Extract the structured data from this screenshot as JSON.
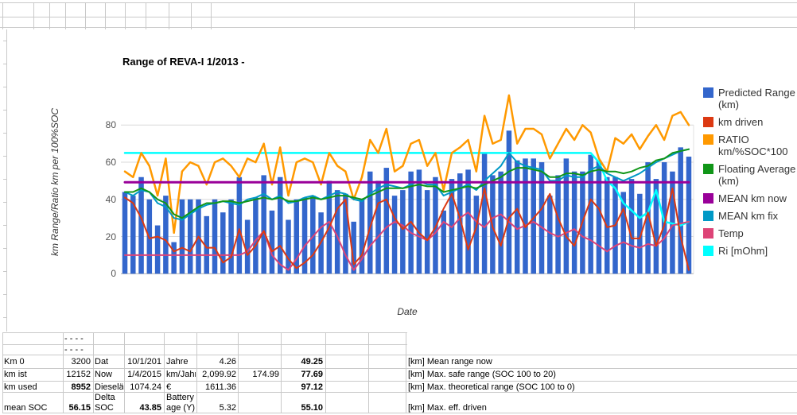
{
  "chart": {
    "title": "Range of REVA-I 1/2013 -",
    "y_axis_label": "km Range/Ratio km per 100%SOC",
    "x_axis_label": "Date",
    "legend": [
      {
        "label": "Predicted Range (km)",
        "color": "#3366CC"
      },
      {
        "label": "km driven",
        "color": "#DC3912"
      },
      {
        "label": "RATIO km/%SOC*100",
        "color": "#FF9900"
      },
      {
        "label": "Floating Average (km)",
        "color": "#109618"
      },
      {
        "label": "MEAN km now",
        "color": "#990099"
      },
      {
        "label": "MEAN km fix",
        "color": "#0099C6"
      },
      {
        "label": "Temp",
        "color": "#DD4477"
      },
      {
        "label": "Ri [mOhm]",
        "color": "#00FFFF"
      }
    ]
  },
  "chart_data": {
    "type": "combo (bar + line)",
    "title": "Range of REVA-I 1/2013 -",
    "xlabel": "Date",
    "ylabel": "km Range/Ratio km per 100%SOC",
    "x_tick_labels": "none shown",
    "n_points": 70,
    "ylim": [
      0,
      100
    ],
    "yticks": [
      0,
      20,
      40,
      60,
      80
    ],
    "grid": true,
    "legend_position": "right",
    "series": [
      {
        "name": "Predicted Range (km)",
        "type": "bar",
        "color": "#3366CC",
        "values": [
          44,
          42,
          52,
          40,
          26,
          42,
          17,
          40,
          40,
          40,
          31,
          40,
          33,
          40,
          52,
          29,
          41,
          53,
          34,
          52,
          29,
          40,
          41,
          42,
          33,
          50,
          45,
          43,
          28,
          40,
          55,
          50,
          57,
          42,
          45,
          55,
          56,
          45,
          52,
          34,
          51,
          54,
          56,
          42,
          65,
          53,
          55,
          77,
          61,
          62,
          62,
          60,
          42,
          53,
          62,
          55,
          55,
          64,
          61,
          52,
          52,
          44,
          51,
          43,
          60,
          51,
          60,
          55,
          68,
          63
        ]
      },
      {
        "name": "km driven",
        "type": "line",
        "color": "#DC3912",
        "values": [
          41,
          38,
          30,
          19,
          20,
          18,
          12,
          14,
          12,
          20,
          14,
          14,
          6,
          9,
          24,
          10,
          15,
          23,
          12,
          15,
          8,
          3,
          6,
          10,
          17,
          25,
          35,
          40,
          5,
          10,
          25,
          38,
          40,
          30,
          24,
          28,
          22,
          18,
          25,
          35,
          43,
          30,
          13,
          25,
          46,
          25,
          15,
          30,
          35,
          25,
          30,
          35,
          43,
          30,
          20,
          15,
          28,
          40,
          35,
          25,
          26,
          35,
          19,
          19,
          33,
          15,
          26,
          46,
          20,
          2
        ]
      },
      {
        "name": "RATIO km/%SOC*100",
        "type": "line",
        "color": "#FF9900",
        "values": [
          55,
          52,
          65,
          58,
          42,
          62,
          22,
          55,
          60,
          58,
          48,
          60,
          62,
          58,
          52,
          62,
          60,
          70,
          48,
          68,
          42,
          60,
          62,
          60,
          48,
          65,
          58,
          55,
          40,
          52,
          72,
          65,
          78,
          55,
          58,
          70,
          72,
          58,
          65,
          45,
          65,
          68,
          72,
          55,
          85,
          70,
          72,
          96,
          70,
          78,
          78,
          75,
          62,
          70,
          78,
          72,
          80,
          76,
          62,
          55,
          73,
          70,
          75,
          67,
          74,
          80,
          72,
          85,
          87,
          80
        ]
      },
      {
        "name": "Floating Average (km)",
        "type": "line",
        "color": "#109618",
        "values": [
          44,
          44,
          46,
          44,
          40,
          38,
          32,
          30,
          33,
          36,
          38,
          38,
          39,
          39,
          38,
          39,
          40,
          41,
          40,
          41,
          39,
          39,
          40,
          41,
          40,
          41,
          42,
          42,
          41,
          40,
          42,
          44,
          46,
          46,
          46,
          47,
          48,
          47,
          47,
          44,
          45,
          46,
          47,
          46,
          48,
          50,
          52,
          55,
          57,
          57,
          56,
          55,
          52,
          52,
          54,
          54,
          53,
          55,
          56,
          55,
          55,
          54,
          55,
          57,
          58,
          61,
          62,
          65,
          66,
          67
        ]
      },
      {
        "name": "MEAN km now",
        "type": "line",
        "color": "#990099",
        "constant": 49.25
      },
      {
        "name": "MEAN km fix",
        "type": "line",
        "color": "#0099C6",
        "values": [
          44,
          42,
          45,
          44,
          38,
          36,
          30,
          29,
          32,
          35,
          37,
          38,
          39,
          38,
          37,
          40,
          41,
          43,
          40,
          42,
          38,
          39,
          41,
          42,
          40,
          42,
          44,
          43,
          40,
          39,
          43,
          46,
          48,
          47,
          46,
          48,
          50,
          48,
          48,
          42,
          44,
          46,
          48,
          45,
          50,
          54,
          58,
          65,
          60,
          58,
          57,
          56,
          50,
          50,
          53,
          52,
          52,
          56,
          58,
          54,
          52,
          50,
          52,
          54,
          57,
          60,
          62,
          64,
          66,
          67
        ]
      },
      {
        "name": "Temp",
        "type": "line",
        "color": "#DD4477",
        "values": [
          10,
          10,
          10,
          10,
          10,
          10,
          10,
          10,
          10,
          10,
          10,
          10,
          10,
          10,
          10,
          12,
          18,
          23,
          10,
          5,
          2,
          8,
          15,
          20,
          25,
          28,
          20,
          10,
          2,
          8,
          15,
          20,
          25,
          28,
          26,
          22,
          20,
          18,
          22,
          28,
          25,
          30,
          33,
          28,
          25,
          30,
          32,
          28,
          24,
          26,
          28,
          25,
          22,
          20,
          22,
          24,
          20,
          18,
          15,
          12,
          15,
          17,
          15,
          14,
          16,
          15,
          19,
          26,
          27,
          28
        ]
      },
      {
        "name": "Ri [mOhm]",
        "type": "line",
        "color": "#00FFFF",
        "values": [
          65,
          65,
          65,
          65,
          65,
          65,
          65,
          65,
          65,
          65,
          65,
          65,
          65,
          65,
          65,
          65,
          65,
          65,
          65,
          65,
          65,
          65,
          65,
          65,
          65,
          65,
          65,
          65,
          65,
          65,
          65,
          65,
          65,
          65,
          65,
          65,
          65,
          65,
          65,
          65,
          65,
          65,
          65,
          65,
          65,
          65,
          65,
          65,
          65,
          65,
          65,
          65,
          65,
          65,
          65,
          65,
          65,
          65,
          60,
          50,
          46,
          38,
          34,
          30,
          33,
          45,
          28,
          27,
          26,
          28
        ]
      }
    ]
  },
  "table": {
    "dash_rows": [
      "- - - -",
      "- - - -"
    ],
    "rows": [
      {
        "cells": [
          "Km 0",
          "3200",
          "Dat",
          "10/1/201",
          "Jahre",
          "4.26",
          "",
          "49.25",
          "[km] Mean range now"
        ],
        "bold": [
          7
        ]
      },
      {
        "cells": [
          "km ist",
          "12152",
          "Now",
          "1/4/2015",
          "km/Jahr",
          "2,099.92",
          "174.99",
          "77.69",
          "[km] Max. safe range (SOC 100 to 20)"
        ],
        "bold": [
          7
        ]
      },
      {
        "cells": [
          "km used",
          "8952",
          "Dieselä",
          "1074.24",
          "€",
          "1611.36",
          "",
          "97.12",
          "[km] Max. theoretical range (SOC 100 to 0)"
        ],
        "bold": [
          1,
          7
        ]
      },
      {
        "cells": [
          "mean SOC",
          "56.15",
          "Delta SOC",
          "43.85",
          "Battery age (Y)",
          "5.32",
          "",
          "55.10",
          "[km] Max. eff. driven"
        ],
        "bold": [
          1,
          3,
          7
        ]
      }
    ]
  }
}
